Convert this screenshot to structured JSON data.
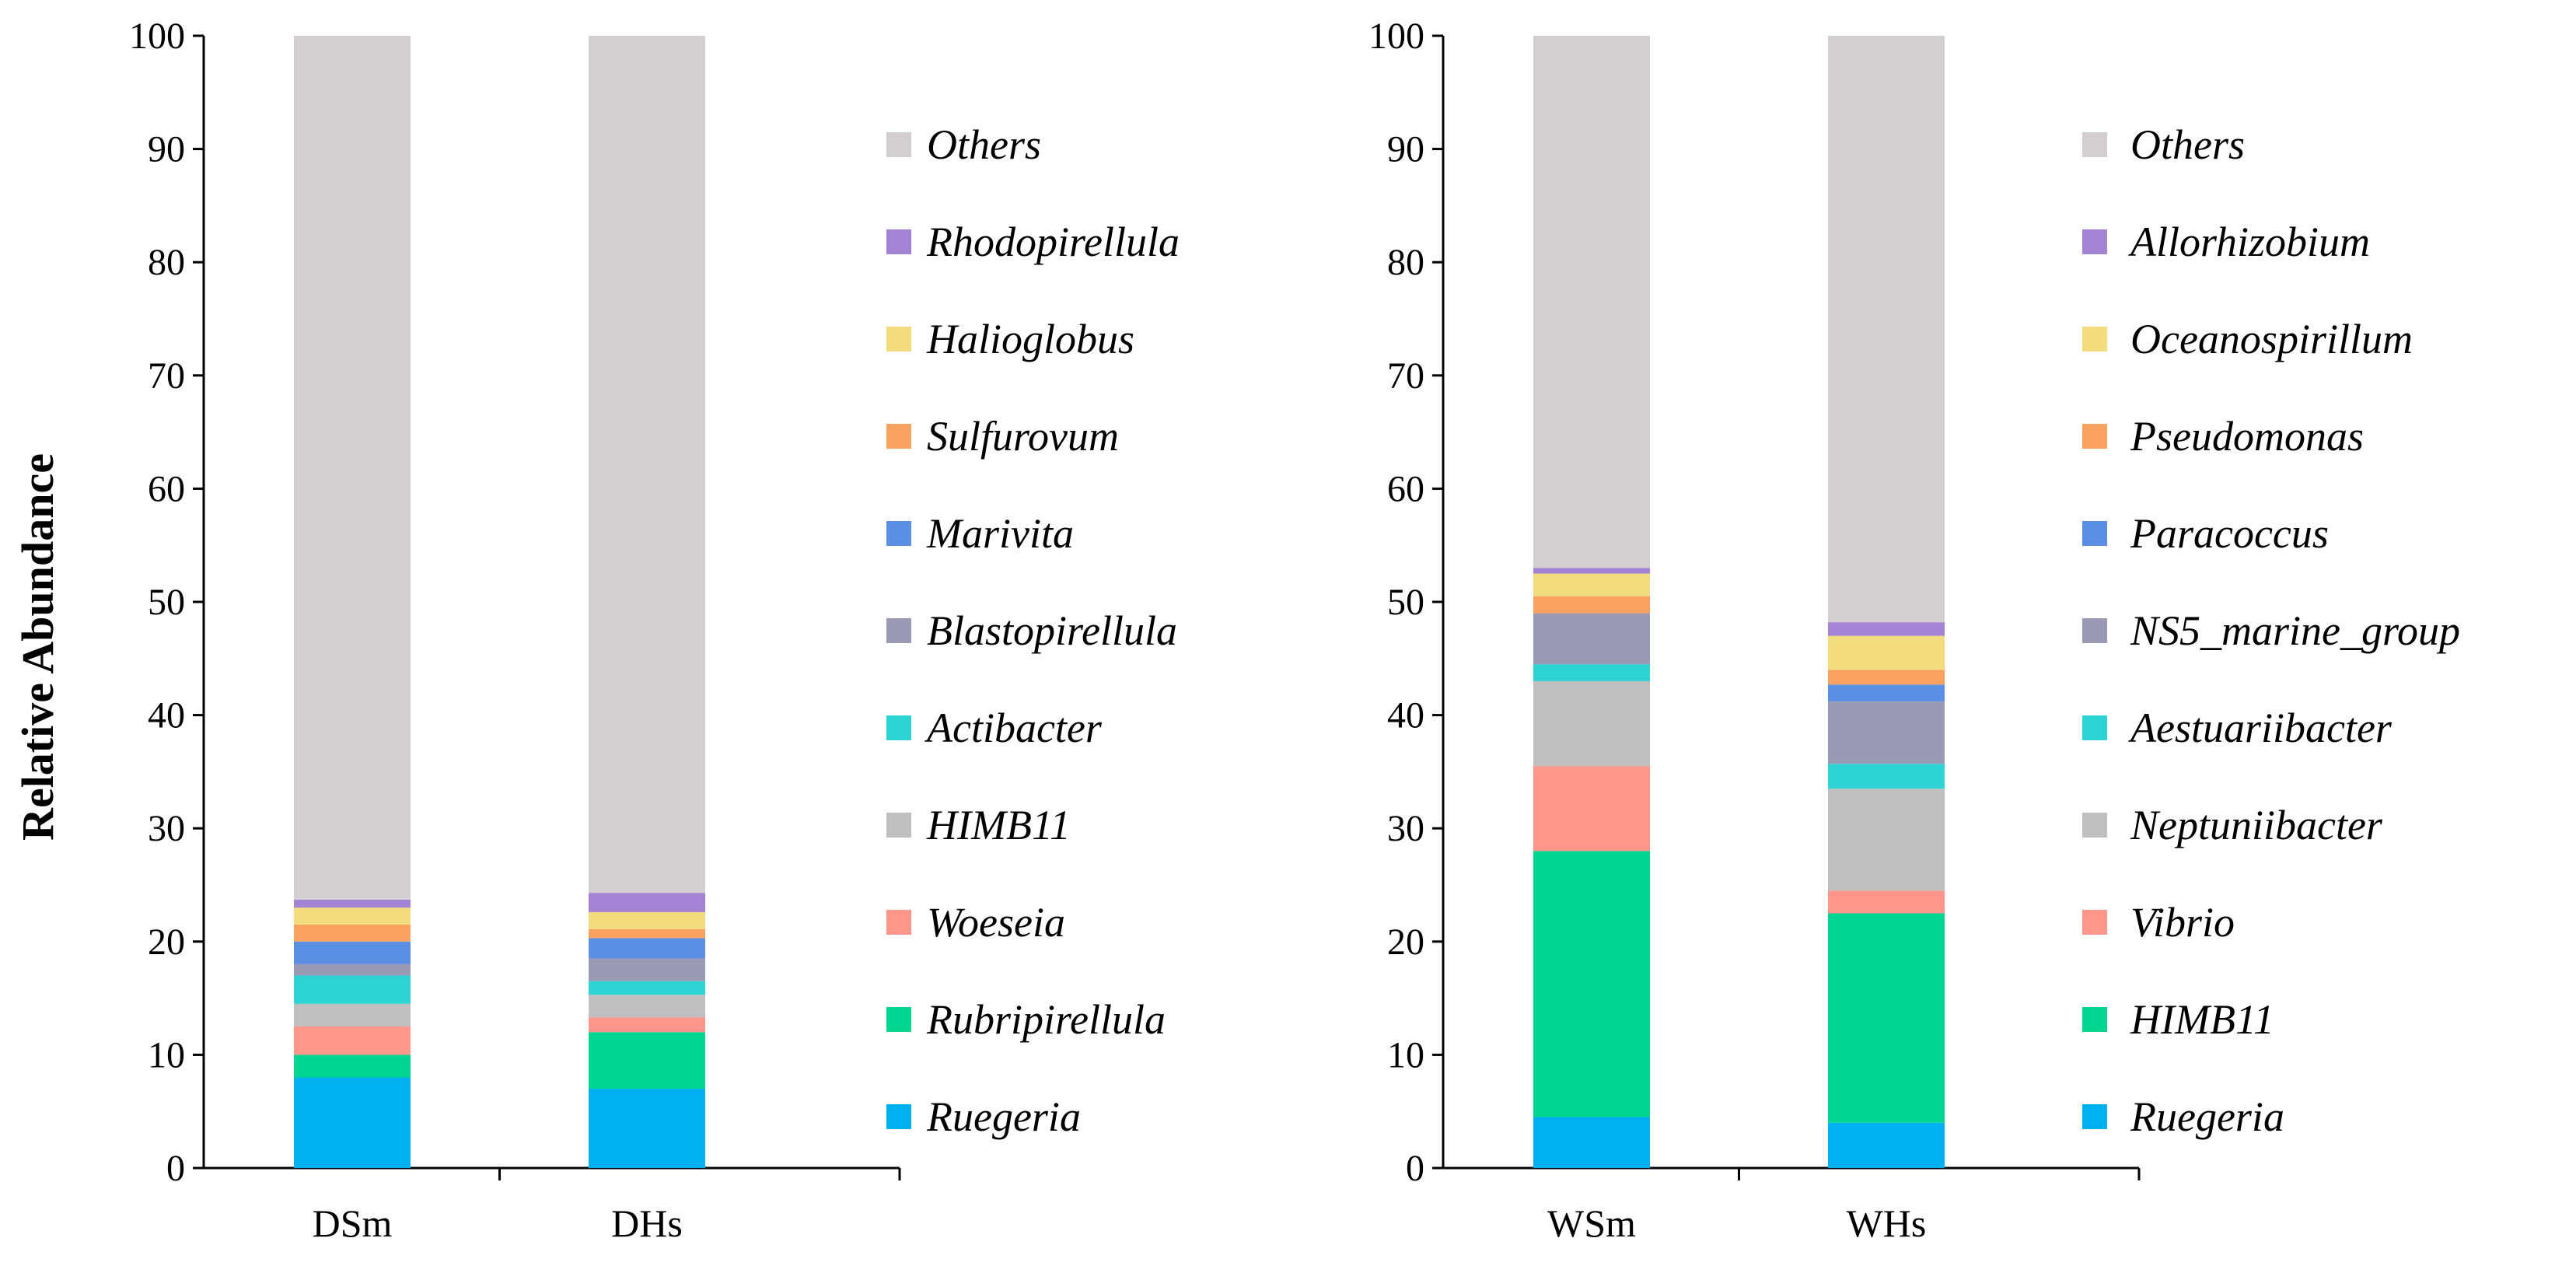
{
  "ylabel": "Relative Abundance",
  "chart_data": [
    {
      "type": "bar",
      "stacked": true,
      "categories": [
        "DSm",
        "DHs"
      ],
      "ylim": [
        0,
        100
      ],
      "yticks": [
        0,
        10,
        20,
        30,
        40,
        50,
        60,
        70,
        80,
        90,
        100
      ],
      "grid": false,
      "legend_position": "right",
      "series": [
        {
          "name": "Ruegeria",
          "color": "#00B0F0",
          "values": [
            8.0,
            7.0
          ]
        },
        {
          "name": "Rubripirellula",
          "color": "#00D68F",
          "values": [
            2.0,
            5.0
          ]
        },
        {
          "name": "Woeseia",
          "color": "#FF968C",
          "values": [
            2.5,
            1.3
          ]
        },
        {
          "name": "HIMB11",
          "color": "#BFBFBF",
          "values": [
            2.0,
            2.0
          ]
        },
        {
          "name": "Actibacter",
          "color": "#2ED3D3",
          "values": [
            2.5,
            1.2
          ]
        },
        {
          "name": "Blastopirellula",
          "color": "#9A9AB4",
          "values": [
            1.0,
            2.0
          ]
        },
        {
          "name": "Marivita",
          "color": "#5B8FE3",
          "values": [
            2.0,
            1.8
          ]
        },
        {
          "name": "Sulfurovum",
          "color": "#F9A15F",
          "values": [
            1.5,
            0.8
          ]
        },
        {
          "name": "Halioglobus",
          "color": "#F2DC7E",
          "values": [
            1.5,
            1.5
          ]
        },
        {
          "name": "Rhodopirellula",
          "color": "#A384D4",
          "values": [
            0.7,
            1.7
          ]
        },
        {
          "name": "Others",
          "color": "#D3CFD1",
          "values": [
            76.3,
            75.7
          ]
        }
      ]
    },
    {
      "type": "bar",
      "stacked": true,
      "categories": [
        "WSm",
        "WHs"
      ],
      "ylim": [
        0,
        100
      ],
      "yticks": [
        0,
        10,
        20,
        30,
        40,
        50,
        60,
        70,
        80,
        90,
        100
      ],
      "grid": false,
      "legend_position": "right",
      "series": [
        {
          "name": "Ruegeria",
          "color": "#00B0F0",
          "values": [
            4.5,
            4.0
          ]
        },
        {
          "name": "HIMB11",
          "color": "#00D68F",
          "values": [
            23.5,
            18.5
          ]
        },
        {
          "name": "Vibrio",
          "color": "#FF968C",
          "values": [
            7.5,
            2.0
          ]
        },
        {
          "name": "Neptuniibacter",
          "color": "#BFBFBF",
          "values": [
            7.5,
            9.0
          ]
        },
        {
          "name": "Aestuariibacter",
          "color": "#2ED3D3",
          "values": [
            1.5,
            2.2
          ]
        },
        {
          "name": "NS5_marine_group",
          "color": "#9A9AB4",
          "values": [
            4.5,
            5.5
          ]
        },
        {
          "name": "Paracoccus",
          "color": "#5B8FE3",
          "values": [
            0.0,
            1.5
          ]
        },
        {
          "name": "Pseudomonas",
          "color": "#F9A15F",
          "values": [
            1.5,
            1.3
          ]
        },
        {
          "name": "Oceanospirillum",
          "color": "#F2DC7E",
          "values": [
            2.0,
            3.0
          ]
        },
        {
          "name": "Allorhizobium",
          "color": "#A384D4",
          "values": [
            0.5,
            1.2
          ]
        },
        {
          "name": "Others",
          "color": "#D3CFD1",
          "values": [
            47.0,
            51.8
          ]
        }
      ]
    }
  ]
}
